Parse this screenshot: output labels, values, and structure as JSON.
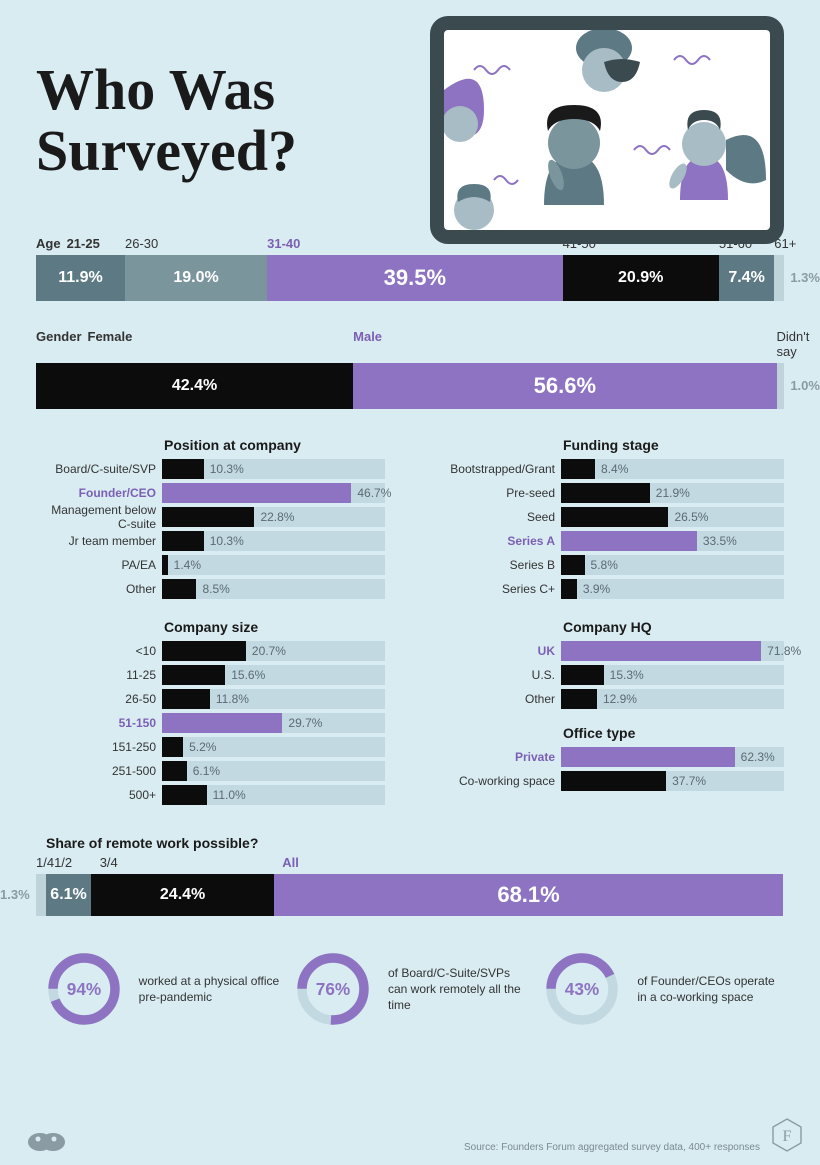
{
  "title": "Who Was\nSurveyed?",
  "colors": {
    "bg": "#d9ecf2",
    "black": "#0c0c0c",
    "purple": "#8d73c2",
    "purple_text": "#7c5fb5",
    "slate_dark": "#5d7a84",
    "slate_mid": "#7b959d",
    "track": "#c2d9e2",
    "muted": "#8a9ba3",
    "pale": "#bfd3db"
  },
  "age": {
    "label": "Age",
    "segments": [
      {
        "label": "21-25",
        "value": 11.9,
        "color": "#5d7a84",
        "pct_label": "11.9%"
      },
      {
        "label": "26-30",
        "value": 19.0,
        "color": "#7b959d",
        "pct_label": "19.0%"
      },
      {
        "label": "31-40",
        "value": 39.5,
        "color": "#8d73c2",
        "pct_label": "39.5%",
        "highlight": true,
        "big": true
      },
      {
        "label": "41-50",
        "value": 20.9,
        "color": "#0c0c0c",
        "pct_label": "20.9%"
      },
      {
        "label": "51-60",
        "value": 7.4,
        "color": "#5d7a84",
        "pct_label": "7.4%"
      },
      {
        "label": "61+",
        "value": 1.3,
        "color": "#bfd3db",
        "pct_label": "1.3%",
        "outside": true
      }
    ]
  },
  "gender": {
    "label": "Gender",
    "segments": [
      {
        "label": "Female",
        "value": 42.4,
        "color": "#0c0c0c",
        "pct_label": "42.4%"
      },
      {
        "label": "Male",
        "value": 56.6,
        "color": "#8d73c2",
        "pct_label": "56.6%",
        "highlight": true,
        "big": true
      },
      {
        "label": "Didn't say",
        "value": 1.0,
        "color": "#bfd3db",
        "pct_label": "1.0%",
        "outside": true
      }
    ]
  },
  "position": {
    "title": "Position at company",
    "bars": [
      {
        "label": "Board/C-suite/SVP",
        "value": 10.3,
        "pct_label": "10.3%"
      },
      {
        "label": "Founder/CEO",
        "value": 46.7,
        "pct_label": "46.7%",
        "highlight": true
      },
      {
        "label": "Management below C-suite",
        "value": 22.8,
        "pct_label": "22.8%"
      },
      {
        "label": "Jr team member",
        "value": 10.3,
        "pct_label": "10.3%"
      },
      {
        "label": "PA/EA",
        "value": 1.4,
        "pct_label": "1.4%"
      },
      {
        "label": "Other",
        "value": 8.5,
        "pct_label": "8.5%"
      }
    ],
    "scale_max": 55
  },
  "funding": {
    "title": "Funding stage",
    "bars": [
      {
        "label": "Bootstrapped/Grant",
        "value": 8.4,
        "pct_label": "8.4%"
      },
      {
        "label": "Pre-seed",
        "value": 21.9,
        "pct_label": "21.9%"
      },
      {
        "label": "Seed",
        "value": 26.5,
        "pct_label": "26.5%"
      },
      {
        "label": "Series A",
        "value": 33.5,
        "pct_label": "33.5%",
        "highlight": true
      },
      {
        "label": "Series B",
        "value": 5.8,
        "pct_label": "5.8%"
      },
      {
        "label": "Series C+",
        "value": 3.9,
        "pct_label": "3.9%"
      }
    ],
    "scale_max": 55
  },
  "size": {
    "title": "Company size",
    "bars": [
      {
        "label": "<10",
        "value": 20.7,
        "pct_label": "20.7%"
      },
      {
        "label": "11-25",
        "value": 15.6,
        "pct_label": "15.6%"
      },
      {
        "label": "26-50",
        "value": 11.8,
        "pct_label": "11.8%"
      },
      {
        "label": "51-150",
        "value": 29.7,
        "pct_label": "29.7%",
        "highlight": true
      },
      {
        "label": "151-250",
        "value": 5.2,
        "pct_label": "5.2%"
      },
      {
        "label": "251-500",
        "value": 6.1,
        "pct_label": "6.1%"
      },
      {
        "label": "500+",
        "value": 11.0,
        "pct_label": "11.0%"
      }
    ],
    "scale_max": 55
  },
  "hq": {
    "title": "Company HQ",
    "bars": [
      {
        "label": "UK",
        "value": 71.8,
        "pct_label": "71.8%",
        "highlight": true
      },
      {
        "label": "U.S.",
        "value": 15.3,
        "pct_label": "15.3%"
      },
      {
        "label": "Other",
        "value": 12.9,
        "pct_label": "12.9%"
      }
    ],
    "scale_max": 80
  },
  "office": {
    "title": "Office type",
    "bars": [
      {
        "label": "Private",
        "value": 62.3,
        "pct_label": "62.3%",
        "highlight": true
      },
      {
        "label": "Co-working space",
        "value": 37.7,
        "pct_label": "37.7%"
      }
    ],
    "scale_max": 80
  },
  "remote": {
    "title": "Share of remote work possible?",
    "segments": [
      {
        "label": "1/4",
        "value": 1.3,
        "color": "#bfd3db",
        "pct_label": "1.3%",
        "outside_left": true
      },
      {
        "label": "1/2",
        "value": 6.1,
        "color": "#5d7a84",
        "pct_label": "6.1%"
      },
      {
        "label": "3/4",
        "value": 24.4,
        "color": "#0c0c0c",
        "pct_label": "24.4%"
      },
      {
        "label": "All",
        "value": 68.1,
        "color": "#8d73c2",
        "pct_label": "68.1%",
        "highlight": true,
        "big": true
      }
    ]
  },
  "donuts": [
    {
      "pct": 94,
      "pct_label": "94%",
      "text": "worked at a physical office pre-pandemic"
    },
    {
      "pct": 76,
      "pct_label": "76%",
      "text": "of Board/C-Suite/SVPs can work remotely all the time"
    },
    {
      "pct": 43,
      "pct_label": "43%",
      "text": "of Founder/CEOs operate in a co-working space"
    }
  ],
  "donut_style": {
    "radius": 36,
    "stroke": 11,
    "track_color": "#c2d9e2",
    "arc_color": "#8d73c2"
  },
  "source": "Source: Founders Forum aggregated survey data, 400+ responses"
}
